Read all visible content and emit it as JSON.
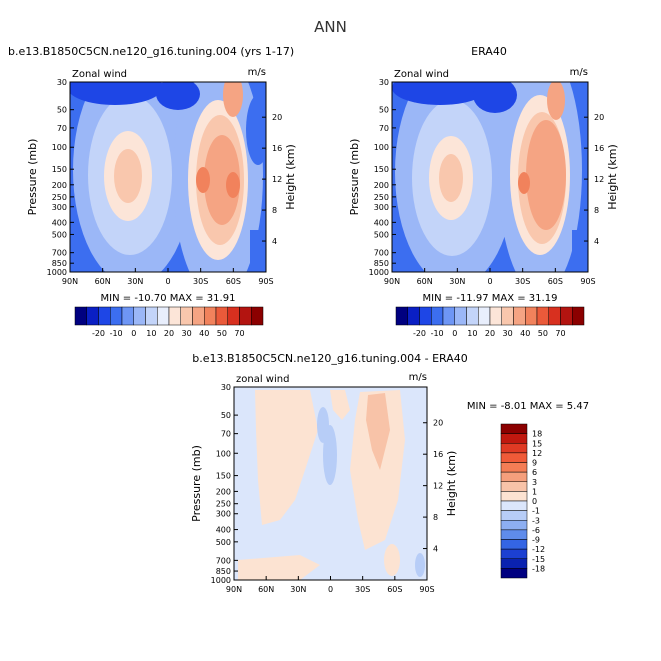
{
  "page": {
    "title": "ANN"
  },
  "chart_data": [
    {
      "type": "heatmap",
      "title": "b.e13.B1850C5CN.ne120_g16.tuning.004 (yrs 1-17)",
      "left_label": "Zonal wind",
      "right_label": "m/s",
      "xlabel": "",
      "ylabel": "Pressure (mb)",
      "y2label": "Height (km)",
      "x_ticks": [
        "90N",
        "60N",
        "30N",
        "0",
        "30S",
        "60S",
        "90S"
      ],
      "y_ticks": [
        "30",
        "50",
        "70",
        "100",
        "150",
        "200",
        "250",
        "300",
        "400",
        "500",
        "700",
        "850",
        "1000"
      ],
      "y2_ticks": [
        "20",
        "16",
        "12",
        "8",
        "4"
      ],
      "stats": "MIN = -10.70   MAX =  31.91",
      "min": -10.7,
      "max": 31.91
    },
    {
      "type": "heatmap",
      "title": "ERA40",
      "left_label": "Zonal wind",
      "right_label": "m/s",
      "xlabel": "",
      "ylabel": "Pressure (mb)",
      "y2label": "Height (km)",
      "x_ticks": [
        "90N",
        "60N",
        "30N",
        "0",
        "30S",
        "60S",
        "90S"
      ],
      "y_ticks": [
        "30",
        "50",
        "70",
        "100",
        "150",
        "200",
        "250",
        "300",
        "400",
        "500",
        "700",
        "850",
        "1000"
      ],
      "y2_ticks": [
        "20",
        "16",
        "12",
        "8",
        "4"
      ],
      "stats": "MIN = -11.97   MAX =  31.19",
      "min": -11.97,
      "max": 31.19
    },
    {
      "type": "heatmap",
      "title": "b.e13.B1850C5CN.ne120_g16.tuning.004 - ERA40",
      "left_label": "zonal wind",
      "right_label": "m/s",
      "xlabel": "",
      "ylabel": "Pressure (mb)",
      "y2label": "Height (km)",
      "x_ticks": [
        "90N",
        "60N",
        "30N",
        "0",
        "30S",
        "60S",
        "90S"
      ],
      "y_ticks": [
        "30",
        "50",
        "70",
        "100",
        "150",
        "200",
        "250",
        "300",
        "400",
        "500",
        "700",
        "850",
        "1000"
      ],
      "y2_ticks": [
        "20",
        "16",
        "12",
        "8",
        "4"
      ],
      "stats": "MIN =  -8.01   MAX =   5.47",
      "min": -8.01,
      "max": 5.47
    }
  ],
  "colorbar_top": {
    "labels": [
      "-20",
      "-10",
      "0",
      "10",
      "20",
      "30",
      "40",
      "50",
      "70"
    ],
    "colors": [
      "#000080",
      "#0a1fc4",
      "#1e46e6",
      "#3c6ef0",
      "#6e96f5",
      "#9bb7f7",
      "#c3d4f9",
      "#e8eefc",
      "#fce5d8",
      "#f9c7ad",
      "#f5a483",
      "#f1825c",
      "#ea5a3a",
      "#d8301f",
      "#b31410",
      "#8b0000"
    ]
  },
  "colorbar_diff": {
    "labels": [
      "18",
      "15",
      "12",
      "9",
      "6",
      "3",
      "1",
      "0",
      "-1",
      "-3",
      "-6",
      "-9",
      "-12",
      "-15",
      "-18"
    ],
    "colors": [
      "#8b0000",
      "#c0180f",
      "#e03a24",
      "#f05a38",
      "#f47d55",
      "#f59f7c",
      "#f8c3a8",
      "#fce3d2",
      "#dbe6fb",
      "#b7cdf7",
      "#8daff2",
      "#5f8ceb",
      "#3465e4",
      "#1c40d2",
      "#0a22b0",
      "#000080"
    ]
  }
}
